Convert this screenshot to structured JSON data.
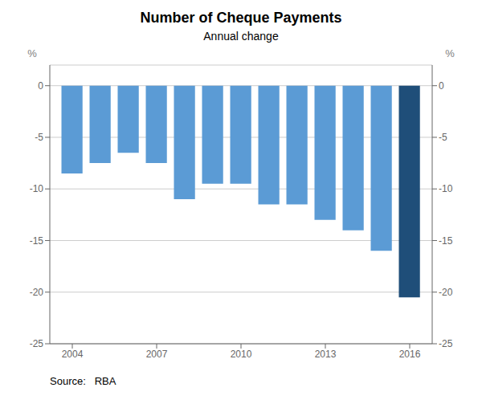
{
  "chart_data": {
    "type": "bar",
    "title": "Number of Cheque Payments",
    "subtitle": "Annual change",
    "ylabel": "%",
    "y2label": "%",
    "source": "Source:   RBA",
    "x": [
      2004,
      2005,
      2006,
      2007,
      2008,
      2009,
      2010,
      2011,
      2012,
      2013,
      2014,
      2015,
      2016
    ],
    "values": [
      -8.5,
      -7.5,
      -6.5,
      -7.5,
      -11.0,
      -9.5,
      -9.5,
      -11.5,
      -11.5,
      -13.0,
      -14.0,
      -16.0,
      -20.5
    ],
    "colors": [
      "#5B9BD5",
      "#5B9BD5",
      "#5B9BD5",
      "#5B9BD5",
      "#5B9BD5",
      "#5B9BD5",
      "#5B9BD5",
      "#5B9BD5",
      "#5B9BD5",
      "#5B9BD5",
      "#5B9BD5",
      "#5B9BD5",
      "#1F4E79"
    ],
    "xlim": [
      2003.2,
      2016.8
    ],
    "xticks": [
      2004,
      2007,
      2010,
      2013,
      2016
    ],
    "ylim": [
      -25,
      2
    ],
    "yticks": [
      0,
      -5,
      -10,
      -15,
      -20,
      -25
    ],
    "y2lim": [
      -25,
      2
    ],
    "y2ticks": [
      0,
      -5,
      -10,
      -15,
      -20,
      -25
    ],
    "grid": true
  }
}
